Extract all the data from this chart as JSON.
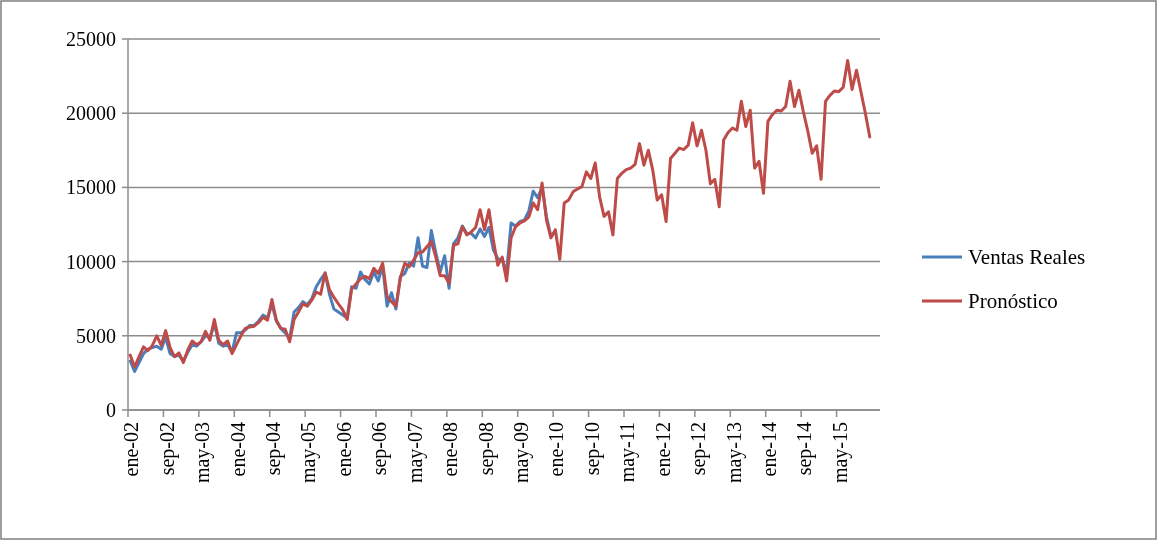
{
  "chart_data": {
    "type": "line",
    "ylim": [
      0,
      25000
    ],
    "yticks": [
      0,
      5000,
      10000,
      15000,
      20000,
      25000
    ],
    "grid": "y",
    "legend": "right",
    "line_style": "solid",
    "categories": [
      "ene-02",
      null,
      null,
      null,
      null,
      null,
      null,
      null,
      "sep-02",
      null,
      null,
      null,
      null,
      null,
      null,
      null,
      "may-03",
      null,
      null,
      null,
      null,
      null,
      null,
      null,
      "ene-04",
      null,
      null,
      null,
      null,
      null,
      null,
      null,
      "sep-04",
      null,
      null,
      null,
      null,
      null,
      null,
      null,
      "may-05",
      null,
      null,
      null,
      null,
      null,
      null,
      null,
      "ene-06",
      null,
      null,
      null,
      null,
      null,
      null,
      null,
      "sep-06",
      null,
      null,
      null,
      null,
      null,
      null,
      null,
      "may-07",
      null,
      null,
      null,
      null,
      null,
      null,
      null,
      "ene-08",
      null,
      null,
      null,
      null,
      null,
      null,
      null,
      "sep-08",
      null,
      null,
      null,
      null,
      null,
      null,
      null,
      "may-09",
      null,
      null,
      null,
      null,
      null,
      null,
      null,
      "ene-10",
      null,
      null,
      null,
      null,
      null,
      null,
      null,
      "sep-10",
      null,
      null,
      null,
      null,
      null,
      null,
      null,
      "may-11",
      null,
      null,
      null,
      null,
      null,
      null,
      null,
      "ene-12",
      null,
      null,
      null,
      null,
      null,
      null,
      null,
      "sep-12",
      null,
      null,
      null,
      null,
      null,
      null,
      null,
      "may-13",
      null,
      null,
      null,
      null,
      null,
      null,
      null,
      "ene-14",
      null,
      null,
      null,
      null,
      null,
      null,
      null,
      "sep-14",
      null,
      null,
      null,
      null,
      null,
      null,
      null,
      "may-15",
      null,
      null,
      null,
      null,
      null,
      null,
      null
    ],
    "series": [
      {
        "name": "Ventas Reales",
        "color": "#4a7ebb",
        "values": [
          3300,
          2600,
          3200,
          3800,
          4100,
          4200,
          4300,
          4100,
          4900,
          3800,
          3600,
          3700,
          3300,
          3900,
          4400,
          4300,
          4600,
          5000,
          4900,
          5800,
          4500,
          4300,
          4400,
          3900,
          5200,
          5200,
          5400,
          5700,
          5700,
          6000,
          6400,
          6200,
          7100,
          6000,
          5500,
          5200,
          4800,
          6600,
          6900,
          7300,
          7100,
          7500,
          8300,
          8800,
          9200,
          7800,
          6800,
          6600,
          6400,
          6200,
          8300,
          8200,
          9300,
          8800,
          8500,
          9300,
          8700,
          9700,
          7000,
          7900,
          6800,
          9000,
          9200,
          9900,
          9700,
          11600,
          9700,
          9600,
          12100,
          10600,
          9300,
          10400,
          8200,
          11200,
          11600,
          12400,
          11900,
          11900,
          11600,
          12200,
          11700,
          12300,
          10800,
          10200,
          10100,
          9300,
          12600,
          12400,
          12700,
          12800,
          13400,
          14750,
          14300,
          15000,
          13000,
          11700,
          12000,
          null,
          null,
          null,
          null,
          null,
          null,
          null,
          null,
          null,
          null,
          null,
          null,
          null,
          null,
          null,
          null,
          null,
          null,
          null,
          null,
          null,
          null,
          null,
          null,
          null,
          null,
          null,
          null,
          null,
          null,
          null,
          null,
          null,
          null,
          null,
          null,
          null,
          null,
          null,
          null,
          null,
          null,
          null,
          null,
          null,
          null,
          null,
          null,
          null,
          null,
          null,
          null,
          null,
          null,
          null,
          null,
          null,
          null,
          null,
          null,
          null,
          null,
          null,
          null,
          null,
          null,
          null,
          null,
          null,
          null,
          null
        ]
      },
      {
        "name": "Pronóstico",
        "color": "#be4b48",
        "values": [
          3700,
          2900,
          3600,
          4250,
          4000,
          4350,
          5000,
          4350,
          5350,
          4200,
          3600,
          3850,
          3200,
          4050,
          4650,
          4400,
          4600,
          5300,
          4700,
          6100,
          4700,
          4400,
          4650,
          3800,
          4400,
          5000,
          5500,
          5600,
          5650,
          5900,
          6250,
          6050,
          7450,
          6050,
          5500,
          5450,
          4600,
          6100,
          6600,
          7150,
          7000,
          7400,
          7950,
          7800,
          9250,
          8100,
          7600,
          7150,
          6750,
          6100,
          8150,
          8500,
          8850,
          9000,
          8850,
          9550,
          9200,
          9900,
          7650,
          7300,
          7000,
          8900,
          9900,
          9650,
          10100,
          10600,
          10650,
          11000,
          11350,
          10300,
          9050,
          9050,
          8550,
          11100,
          11200,
          12350,
          11800,
          12000,
          12300,
          13500,
          12150,
          13500,
          11450,
          9750,
          10300,
          8700,
          11600,
          12350,
          12600,
          12750,
          13000,
          13950,
          13500,
          15300,
          12800,
          11600,
          12150,
          10150,
          13950,
          14150,
          14700,
          14900,
          15050,
          16050,
          15600,
          16650,
          14350,
          13050,
          13350,
          11800,
          15600,
          15950,
          16200,
          16300,
          16550,
          17950,
          16500,
          17500,
          16150,
          14150,
          14500,
          12700,
          16950,
          17300,
          17650,
          17550,
          17850,
          19350,
          17800,
          18850,
          17500,
          15250,
          15550,
          13700,
          18200,
          18700,
          19000,
          18850,
          20800,
          19100,
          20200,
          16300,
          16750,
          14600,
          19450,
          19900,
          20200,
          20150,
          20450,
          22150,
          20450,
          21550,
          20100,
          18800,
          17300,
          17800,
          15550,
          20800,
          21200,
          21500,
          21450,
          21750,
          23550,
          21600,
          22900,
          21450,
          20000,
          18400
        ]
      }
    ]
  }
}
